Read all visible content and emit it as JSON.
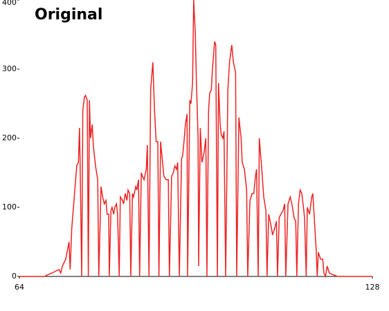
{
  "chart_data": {
    "type": "line",
    "title": "Original",
    "x": [
      64.0,
      68.6,
      69.0,
      69.9,
      71.2,
      71.5,
      71.8,
      72.4,
      73.0,
      73.2,
      73.5,
      74.0,
      74.4,
      74.7,
      74.9,
      75.0,
      75.3,
      75.5,
      75.8,
      76.0,
      76.3,
      76.5,
      76.7,
      76.9,
      77.2,
      77.4,
      77.8,
      78.2,
      78.4,
      78.8,
      79.1,
      79.4,
      79.7,
      79.9,
      80.2,
      80.3,
      80.6,
      80.8,
      81.1,
      81.3,
      81.6,
      81.8,
      82.1,
      82.3,
      82.7,
      82.9,
      83.2,
      83.5,
      83.7,
      84.0,
      84.2,
      84.5,
      84.7,
      85.1,
      85.3,
      85.6,
      85.8,
      86.1,
      86.3,
      86.6,
      87.0,
      87.2,
      87.5,
      87.8,
      88.2,
      88.5,
      88.8,
      89.1,
      89.3,
      89.6,
      89.9,
      90.2,
      90.6,
      91.0,
      91.2,
      91.6,
      91.9,
      92.2,
      92.5,
      92.7,
      93.0,
      93.4,
      93.6,
      93.9,
      94.1,
      94.4,
      94.5,
      94.9,
      95.1,
      95.4,
      95.6,
      95.9,
      96.1,
      96.4,
      96.5,
      96.8,
      97.1,
      97.5,
      97.8,
      98.0,
      98.3,
      98.5,
      98.8,
      99.0,
      99.4,
      99.6,
      99.9,
      100.1,
      100.4,
      100.6,
      100.9,
      101.1,
      101.4,
      101.8,
      102.1,
      102.5,
      102.8,
      103.2,
      103.4,
      103.8,
      104.2,
      104.4,
      104.8,
      105.2,
      105.4,
      105.8,
      106.2,
      106.5,
      106.8,
      107.0,
      107.3,
      107.5,
      107.9,
      108.3,
      108.7,
      108.9,
      109.2,
      109.6,
      109.9,
      110.3,
      110.6,
      110.8,
      111.1,
      111.4,
      111.8,
      112.1,
      112.3,
      112.7,
      113.1,
      113.4,
      113.8,
      114.1,
      114.3,
      114.6,
      114.9,
      115.2,
      115.5,
      115.7,
      116.0,
      116.2,
      116.6,
      117.0,
      117.2,
      117.5,
      117.8,
      118.0,
      118.2,
      118.6,
      119.0,
      119.2,
      119.5,
      119.8,
      120.2,
      120.7,
      121.7,
      128.0
    ],
    "series": [
      {
        "color": "#ee2222",
        "values": [
          0,
          0,
          2,
          5,
          10,
          5,
          15,
          25,
          50,
          10,
          70,
          120,
          160,
          165,
          215,
          170,
          0,
          240,
          260,
          262,
          255,
          0,
          255,
          200,
          220,
          190,
          160,
          140,
          0,
          130,
          115,
          105,
          110,
          90,
          90,
          0,
          95,
          100,
          90,
          100,
          105,
          90,
          0,
          115,
          110,
          105,
          120,
          110,
          125,
          120,
          0,
          120,
          115,
          130,
          125,
          140,
          0,
          150,
          145,
          140,
          155,
          190,
          0,
          270,
          310,
          240,
          195,
          195,
          0,
          195,
          170,
          145,
          140,
          140,
          0,
          145,
          150,
          160,
          155,
          165,
          0,
          170,
          175,
          200,
          220,
          235,
          0,
          255,
          250,
          280,
          400,
          350,
          280,
          200,
          15,
          215,
          165,
          180,
          200,
          0,
          240,
          265,
          270,
          300,
          340,
          335,
          0,
          280,
          220,
          205,
          200,
          210,
          0,
          270,
          310,
          335,
          310,
          295,
          0,
          230,
          200,
          165,
          155,
          125,
          0,
          110,
          120,
          120,
          145,
          155,
          0,
          200,
          160,
          115,
          95,
          0,
          90,
          75,
          60,
          70,
          80,
          0,
          85,
          90,
          95,
          105,
          0,
          105,
          115,
          105,
          85,
          80,
          0,
          105,
          125,
          120,
          100,
          85,
          0,
          100,
          90,
          115,
          120,
          80,
          40,
          0,
          35,
          25,
          25,
          5,
          0,
          15,
          5,
          3,
          0,
          0
        ]
      }
    ],
    "xlim": [
      64,
      128
    ],
    "xticks": [
      64,
      128
    ],
    "ylim": [
      0,
      400
    ],
    "yticks": [
      0,
      100,
      200,
      300,
      400
    ]
  }
}
